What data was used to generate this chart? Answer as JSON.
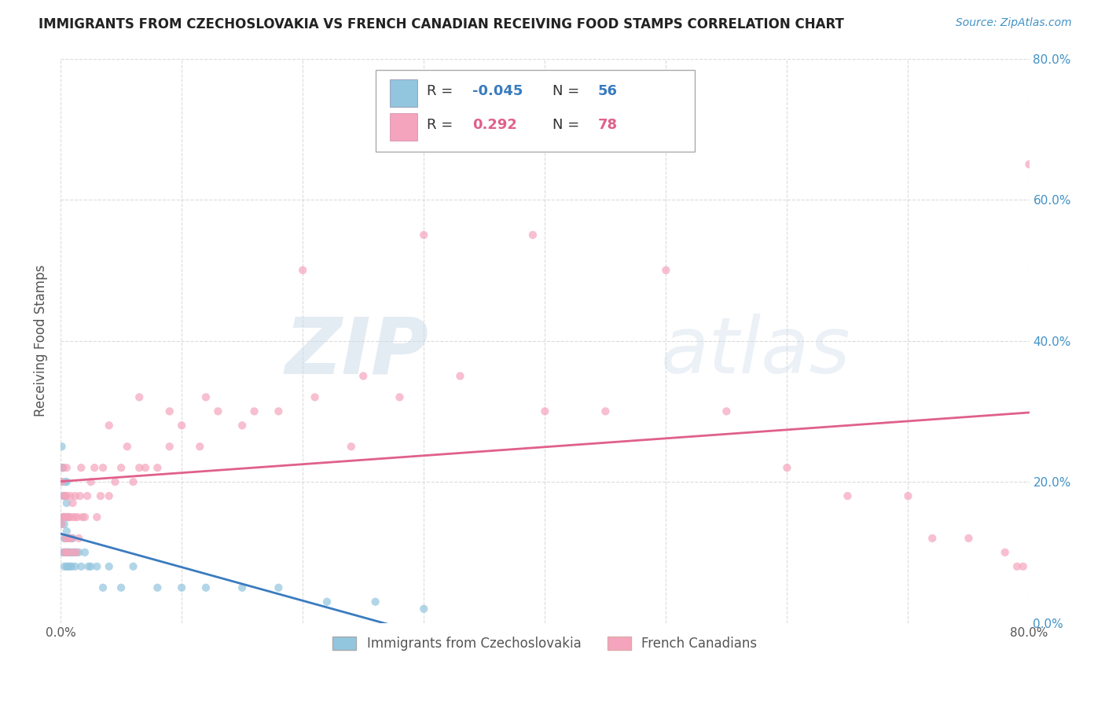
{
  "title": "IMMIGRANTS FROM CZECHOSLOVAKIA VS FRENCH CANADIAN RECEIVING FOOD STAMPS CORRELATION CHART",
  "source": "Source: ZipAtlas.com",
  "ylabel": "Receiving Food Stamps",
  "legend_label1": "Immigrants from Czechoslovakia",
  "legend_label2": "French Canadians",
  "R1": -0.045,
  "N1": 56,
  "R2": 0.292,
  "N2": 78,
  "color1": "#92c5de",
  "color2": "#f4a4bc",
  "line_color1": "#3a7bbf",
  "line_color2": "#e0608a",
  "background_color": "#ffffff",
  "grid_color": "#cccccc",
  "xlim": [
    0.0,
    0.8
  ],
  "ylim": [
    0.0,
    0.8
  ],
  "xticks": [
    0.0,
    0.8
  ],
  "yticks": [
    0.0,
    0.2,
    0.4,
    0.6,
    0.8
  ],
  "xticklabels": [
    "0.0%",
    "80.0%"
  ],
  "yticklabels": [
    "0.0%",
    "20.0%",
    "40.0%",
    "60.0%",
    "80.0%"
  ],
  "czech_x": [
    0.0005,
    0.001,
    0.001,
    0.001,
    0.002,
    0.002,
    0.002,
    0.002,
    0.003,
    0.003,
    0.003,
    0.003,
    0.003,
    0.003,
    0.004,
    0.004,
    0.004,
    0.004,
    0.005,
    0.005,
    0.005,
    0.005,
    0.005,
    0.006,
    0.006,
    0.006,
    0.007,
    0.007,
    0.007,
    0.008,
    0.008,
    0.009,
    0.009,
    0.01,
    0.01,
    0.011,
    0.012,
    0.013,
    0.015,
    0.017,
    0.02,
    0.023,
    0.025,
    0.03,
    0.035,
    0.04,
    0.05,
    0.06,
    0.08,
    0.1,
    0.12,
    0.15,
    0.18,
    0.22,
    0.26,
    0.3
  ],
  "czech_y": [
    0.14,
    0.2,
    0.25,
    0.22,
    0.15,
    0.1,
    0.18,
    0.22,
    0.12,
    0.15,
    0.1,
    0.18,
    0.14,
    0.08,
    0.1,
    0.12,
    0.15,
    0.2,
    0.1,
    0.13,
    0.17,
    0.2,
    0.08,
    0.1,
    0.15,
    0.08,
    0.12,
    0.15,
    0.1,
    0.08,
    0.1,
    0.12,
    0.08,
    0.1,
    0.12,
    0.1,
    0.08,
    0.1,
    0.1,
    0.08,
    0.1,
    0.08,
    0.08,
    0.08,
    0.05,
    0.08,
    0.05,
    0.08,
    0.05,
    0.05,
    0.05,
    0.05,
    0.05,
    0.03,
    0.03,
    0.02
  ],
  "french_x": [
    0.001,
    0.001,
    0.002,
    0.002,
    0.003,
    0.003,
    0.003,
    0.004,
    0.004,
    0.005,
    0.005,
    0.005,
    0.005,
    0.006,
    0.006,
    0.007,
    0.007,
    0.008,
    0.008,
    0.009,
    0.01,
    0.01,
    0.011,
    0.012,
    0.012,
    0.013,
    0.014,
    0.015,
    0.016,
    0.017,
    0.018,
    0.02,
    0.022,
    0.025,
    0.028,
    0.03,
    0.033,
    0.035,
    0.04,
    0.045,
    0.05,
    0.055,
    0.06,
    0.065,
    0.07,
    0.08,
    0.09,
    0.1,
    0.115,
    0.13,
    0.15,
    0.18,
    0.21,
    0.24,
    0.28,
    0.33,
    0.39,
    0.45,
    0.5,
    0.55,
    0.6,
    0.65,
    0.7,
    0.72,
    0.75,
    0.78,
    0.79,
    0.795,
    0.8,
    0.4,
    0.3,
    0.25,
    0.2,
    0.16,
    0.12,
    0.09,
    0.065,
    0.04
  ],
  "french_y": [
    0.14,
    0.2,
    0.15,
    0.22,
    0.1,
    0.15,
    0.18,
    0.12,
    0.18,
    0.1,
    0.15,
    0.18,
    0.22,
    0.12,
    0.15,
    0.1,
    0.15,
    0.12,
    0.18,
    0.12,
    0.15,
    0.17,
    0.1,
    0.15,
    0.18,
    0.1,
    0.15,
    0.12,
    0.18,
    0.22,
    0.15,
    0.15,
    0.18,
    0.2,
    0.22,
    0.15,
    0.18,
    0.22,
    0.18,
    0.2,
    0.22,
    0.25,
    0.2,
    0.22,
    0.22,
    0.22,
    0.25,
    0.28,
    0.25,
    0.3,
    0.28,
    0.3,
    0.32,
    0.25,
    0.32,
    0.35,
    0.55,
    0.3,
    0.5,
    0.3,
    0.22,
    0.18,
    0.18,
    0.12,
    0.12,
    0.1,
    0.08,
    0.08,
    0.65,
    0.3,
    0.55,
    0.35,
    0.5,
    0.3,
    0.32,
    0.3,
    0.32,
    0.28
  ]
}
